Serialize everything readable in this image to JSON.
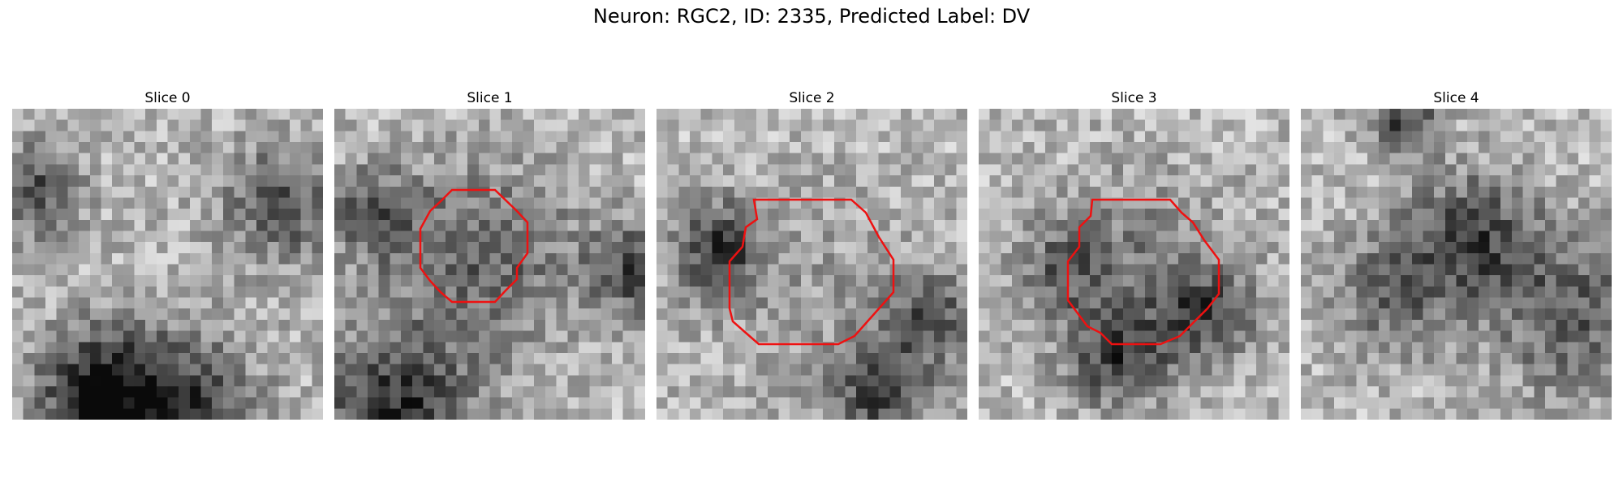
{
  "figure": {
    "title": "Neuron: RGC2, ID: 2335, Predicted Label: DV",
    "contour_color": "#ee1111"
  },
  "slices": [
    {
      "label": "Slice 0",
      "has_contour": false
    },
    {
      "label": "Slice 1",
      "has_contour": true
    },
    {
      "label": "Slice 2",
      "has_contour": true
    },
    {
      "label": "Slice 3",
      "has_contour": true
    },
    {
      "label": "Slice 4",
      "has_contour": false
    }
  ]
}
